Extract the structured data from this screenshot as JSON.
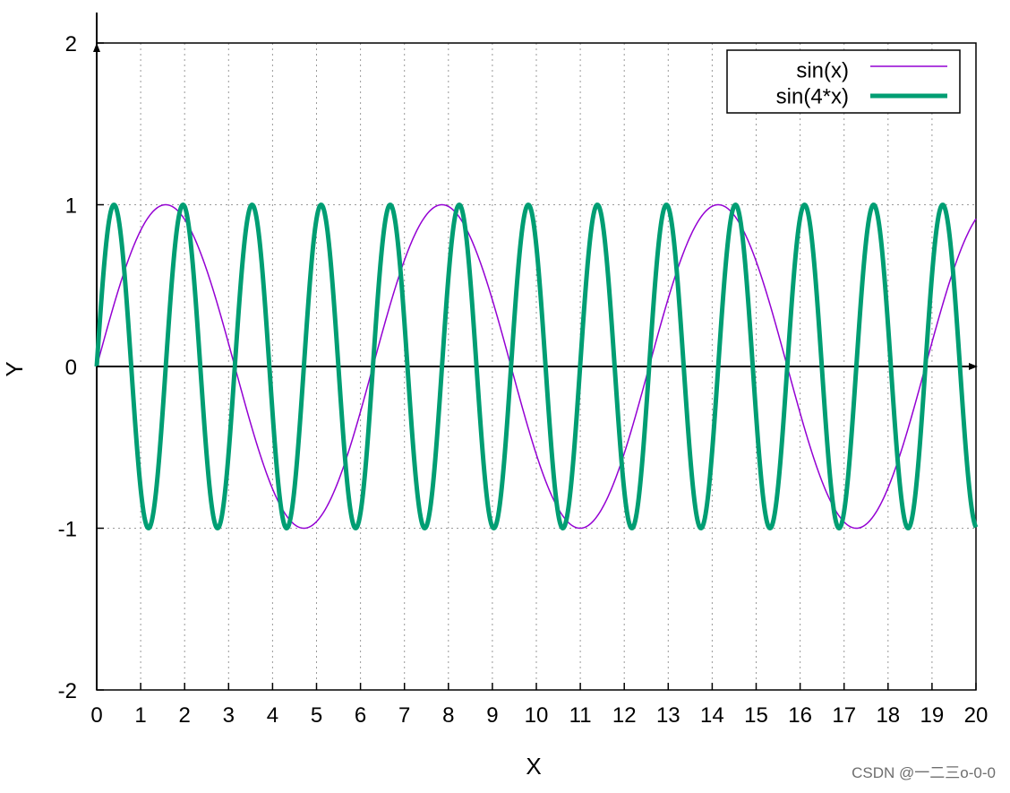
{
  "chart_data": {
    "type": "line",
    "title": "",
    "xlabel": "X",
    "ylabel": "Y",
    "xlim": [
      0,
      20
    ],
    "ylim": [
      -2,
      2
    ],
    "xticks": [
      0,
      1,
      2,
      3,
      4,
      5,
      6,
      7,
      8,
      9,
      10,
      11,
      12,
      13,
      14,
      15,
      16,
      17,
      18,
      19,
      20
    ],
    "yticks": [
      -2,
      -1,
      0,
      1,
      2
    ],
    "grid": true,
    "grid_style": "dotted",
    "zero_axes": true,
    "legend_position": "top-right",
    "series": [
      {
        "name": "sin(x)",
        "color": "#9400d3",
        "function": "sin(x)",
        "x": [
          0,
          0.5,
          1,
          1.5,
          2,
          2.5,
          3,
          3.5,
          4,
          4.5,
          5,
          5.5,
          6,
          6.5,
          7,
          7.5,
          8,
          8.5,
          9,
          9.5,
          10,
          10.5,
          11,
          11.5,
          12,
          12.5,
          13,
          13.5,
          14,
          14.5,
          15,
          15.5,
          16,
          16.5,
          17,
          17.5,
          18,
          18.5,
          19,
          19.5,
          20
        ],
        "y": [
          0,
          0.479,
          0.841,
          0.997,
          0.909,
          0.598,
          0.141,
          -0.351,
          -0.757,
          -0.978,
          -0.959,
          -0.706,
          -0.279,
          0.215,
          0.657,
          0.938,
          0.989,
          0.798,
          0.412,
          -0.075,
          -0.544,
          -0.88,
          -1.0,
          -0.875,
          -0.537,
          -0.066,
          0.42,
          0.804,
          0.991,
          0.935,
          0.65,
          0.206,
          -0.288,
          -0.712,
          -0.961,
          -0.976,
          -0.751,
          -0.342,
          0.15,
          0.605,
          0.913
        ]
      },
      {
        "name": "sin(4*x)",
        "color": "#009e73",
        "function": "sin(4*x)",
        "x": [
          0,
          0.39,
          0.79,
          1.18,
          1.57,
          1.96,
          2.36,
          2.75,
          3.14,
          3.53,
          3.93,
          4.32,
          4.71,
          5.1,
          5.5,
          5.89,
          6.28,
          6.68,
          7.07,
          7.46,
          7.85,
          8.25,
          8.64,
          9.03,
          9.42,
          9.82,
          10.21,
          10.6,
          11.0,
          11.39,
          11.78,
          12.17,
          12.57,
          12.96,
          13.35,
          13.74,
          14.14,
          14.53,
          14.92,
          15.32,
          15.71,
          16.1,
          16.49,
          16.89,
          17.28,
          17.67,
          18.06,
          18.46,
          18.85,
          19.24,
          19.63,
          20
        ],
        "y": [
          0,
          1,
          0,
          -1,
          0,
          1,
          0,
          -1,
          0,
          1,
          0,
          -1,
          0,
          1,
          0,
          -1,
          0,
          1,
          0,
          -1,
          0,
          1,
          0,
          -1,
          0,
          1,
          0,
          -1,
          0,
          1,
          0,
          -1,
          0,
          1,
          0,
          -1,
          0,
          1,
          0,
          -1,
          0,
          1,
          0,
          -1,
          0,
          1,
          0,
          -1,
          0,
          1,
          0,
          -0.99
        ]
      }
    ]
  },
  "watermark": "CSDN @一二三o-0-0"
}
